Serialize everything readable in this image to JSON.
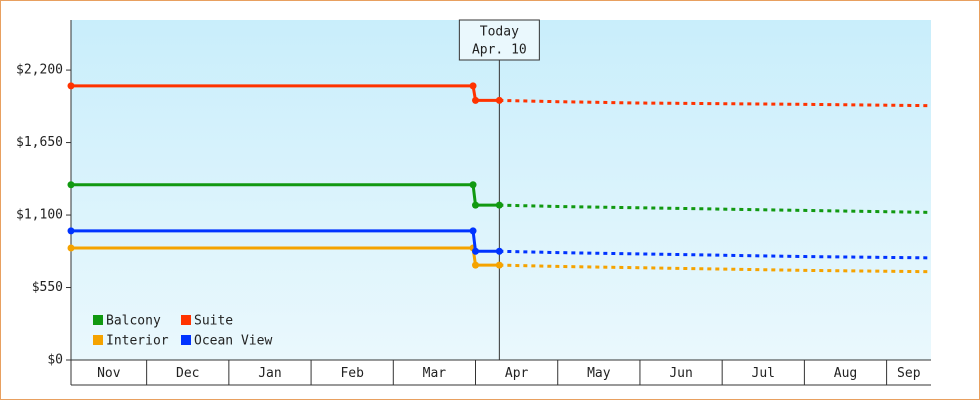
{
  "chart_data": {
    "type": "line",
    "xlim": [
      0.08,
      10.54
    ],
    "xticks": [
      {
        "value": 0,
        "label": "Nov"
      },
      {
        "value": 1,
        "label": "Dec"
      },
      {
        "value": 2,
        "label": "Jan"
      },
      {
        "value": 3,
        "label": "Feb"
      },
      {
        "value": 4,
        "label": "Mar"
      },
      {
        "value": 5,
        "label": "Apr"
      },
      {
        "value": 6,
        "label": "May"
      },
      {
        "value": 7,
        "label": "Jun"
      },
      {
        "value": 8,
        "label": "Jul"
      },
      {
        "value": 9,
        "label": "Aug"
      },
      {
        "value": 10,
        "label": "Sep"
      }
    ],
    "ylim": [
      0,
      2580
    ],
    "yticks": [
      {
        "value": 0,
        "label": "$0"
      },
      {
        "value": 550,
        "label": "$550"
      },
      {
        "value": 1100,
        "label": "$1,100"
      },
      {
        "value": 1650,
        "label": "$1,650"
      },
      {
        "value": 2200,
        "label": "$2,200"
      }
    ],
    "annotation": {
      "x": 5.29,
      "lines": [
        "Today",
        "Apr. 10"
      ]
    },
    "legend": "lower left",
    "series": [
      {
        "name": "Balcony",
        "color": "#119911",
        "x": [
          0.08,
          4.97,
          5.0,
          5.29,
          6.0,
          7.0,
          8.0,
          9.0,
          10.54
        ],
        "values": [
          1330,
          1330,
          1175,
          1175,
          1165,
          1155,
          1145,
          1135,
          1120
        ]
      },
      {
        "name": "Suite",
        "color": "#ff3300",
        "x": [
          0.08,
          4.97,
          5.0,
          5.29,
          6.0,
          7.0,
          8.0,
          9.0,
          10.54
        ],
        "values": [
          2080,
          2080,
          1970,
          1970,
          1960,
          1950,
          1945,
          1940,
          1930
        ]
      },
      {
        "name": "Interior",
        "color": "#f5a300",
        "x": [
          0.08,
          4.97,
          5.0,
          5.29,
          6.0,
          7.0,
          8.0,
          9.0,
          10.54
        ],
        "values": [
          850,
          850,
          720,
          720,
          710,
          700,
          690,
          680,
          670
        ]
      },
      {
        "name": "Ocean View",
        "color": "#0033ff",
        "x": [
          0.08,
          4.97,
          5.0,
          5.29,
          6.0,
          7.0,
          8.0,
          9.0,
          10.54
        ],
        "values": [
          980,
          980,
          825,
          825,
          815,
          805,
          795,
          785,
          775
        ]
      }
    ]
  }
}
